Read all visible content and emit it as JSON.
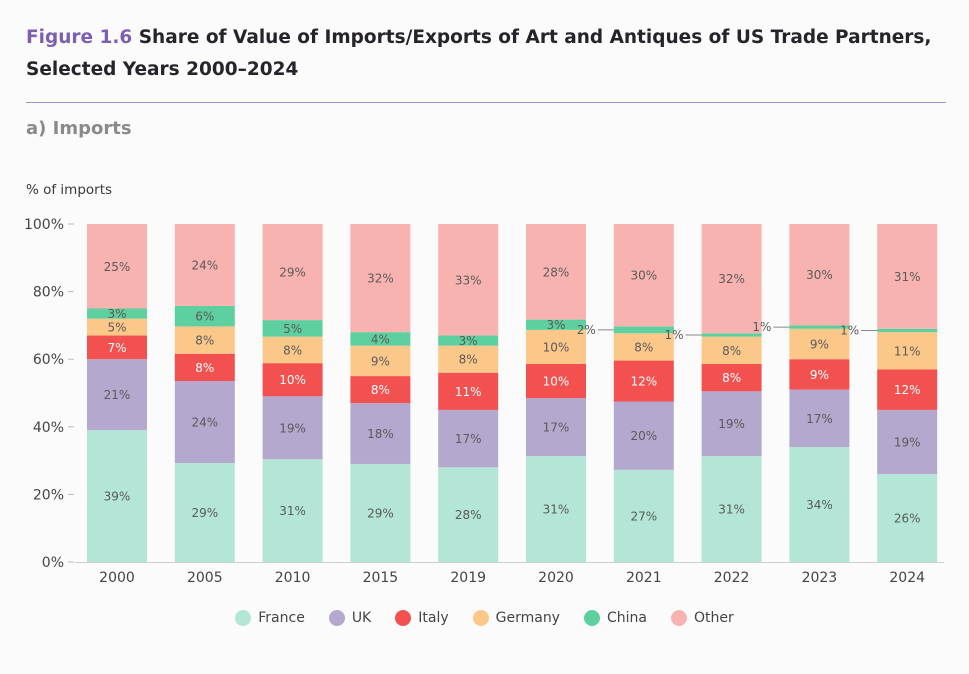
{
  "figure": {
    "number": "Figure 1.6",
    "title": "Share of Value of Imports/Exports of Art and Antiques of US Trade Partners, Selected Years 2000–2024"
  },
  "panel": {
    "title": "a) Imports"
  },
  "chart_data": {
    "type": "bar",
    "stacked": true,
    "ylabel": "% of imports",
    "ylim": [
      0,
      100
    ],
    "y_ticks": [
      "0%",
      "20%",
      "40%",
      "60%",
      "80%",
      "100%"
    ],
    "categories": [
      "2000",
      "2005",
      "2010",
      "2015",
      "2019",
      "2020",
      "2021",
      "2022",
      "2023",
      "2024"
    ],
    "series": [
      {
        "name": "France",
        "color": "#b3e6d6",
        "values": [
          39,
          29,
          31,
          29,
          28,
          31,
          27,
          31,
          34,
          26
        ],
        "labels": [
          "39%",
          "29%",
          "31%",
          "29%",
          "28%",
          "31%",
          "27%",
          "31%",
          "34%",
          "26%"
        ]
      },
      {
        "name": "UK",
        "color": "#b5a8cf",
        "values": [
          21,
          24,
          19,
          18,
          17,
          17,
          20,
          19,
          17,
          19
        ],
        "labels": [
          "21%",
          "24%",
          "19%",
          "18%",
          "17%",
          "17%",
          "20%",
          "19%",
          "17%",
          "19%"
        ]
      },
      {
        "name": "Italy",
        "color": "#f2514f",
        "values": [
          7,
          8,
          10,
          8,
          11,
          10,
          12,
          8,
          9,
          12
        ],
        "labels": [
          "7%",
          "8%",
          "10%",
          "8%",
          "11%",
          "10%",
          "12%",
          "8%",
          "9%",
          "12%"
        ]
      },
      {
        "name": "Germany",
        "color": "#fcc88a",
        "values": [
          5,
          8,
          8,
          9,
          8,
          10,
          8,
          8,
          9,
          11
        ],
        "labels": [
          "5%",
          "8%",
          "8%",
          "9%",
          "8%",
          "10%",
          "8%",
          "8%",
          "9%",
          "11%"
        ]
      },
      {
        "name": "China",
        "color": "#5ecf9f",
        "values": [
          3,
          6,
          5,
          4,
          3,
          3,
          2,
          1,
          1,
          1
        ],
        "labels": [
          "3%",
          "6%",
          "5%",
          "4%",
          "3%",
          "3%",
          "2%",
          "1%",
          "1%",
          "1%"
        ]
      },
      {
        "name": "Other",
        "color": "#f8b3b1",
        "values": [
          25,
          24,
          29,
          32,
          33,
          28,
          30,
          32,
          30,
          31
        ],
        "labels": [
          "25%",
          "24%",
          "29%",
          "32%",
          "33%",
          "28%",
          "30%",
          "32%",
          "30%",
          "31%"
        ]
      }
    ],
    "legend_position": "bottom",
    "grid": false
  }
}
